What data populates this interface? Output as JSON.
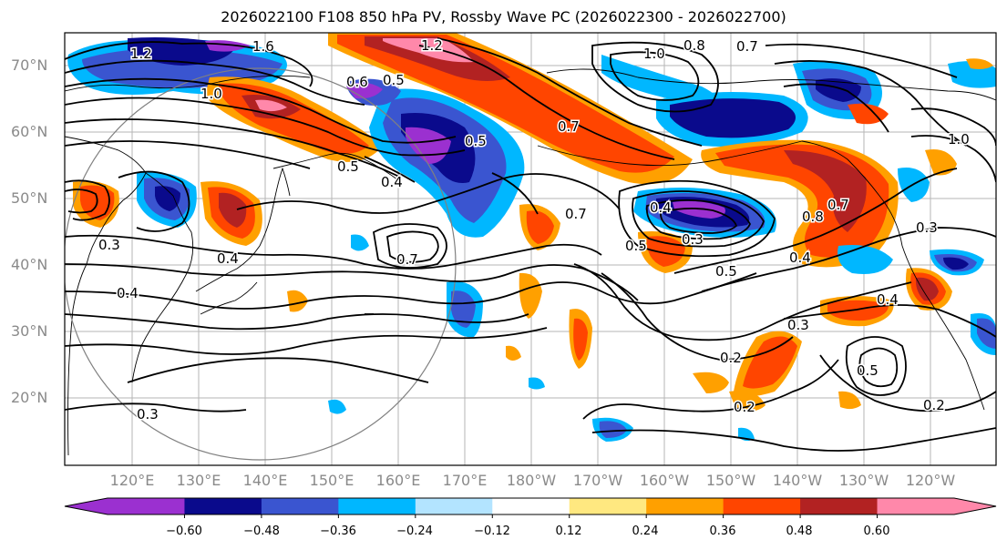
{
  "title": "2026022100 F108 850 hPa PV, Rossby Wave PC (2026022300 - 2026022700)",
  "map": {
    "latitude_labels": [
      "70°N",
      "60°N",
      "50°N",
      "40°N",
      "30°N",
      "20°N"
    ],
    "longitude_labels": [
      "120°E",
      "130°E",
      "140°E",
      "150°E",
      "160°E",
      "170°E",
      "180°W",
      "170°W",
      "160°W",
      "150°W",
      "140°W",
      "130°W",
      "120°W"
    ],
    "contour_labels": [
      "1.2",
      "1.6",
      "1.0",
      "0.8",
      "0.7",
      "1.2",
      "1.0",
      "0.5",
      "0.6",
      "0.5",
      "1.0",
      "0.7",
      "0.5",
      "0.4",
      "0.3",
      "0.4",
      "0.7",
      "0.7",
      "0.4",
      "0.3",
      "0.5",
      "0.5",
      "0.4",
      "0.8",
      "0.7",
      "0.3",
      "0.3",
      "0.4",
      "0.2",
      "0.2",
      "0.2",
      "0.3",
      "0.5",
      "0.4"
    ]
  },
  "colorbar": {
    "tick_labels": [
      "−0.60",
      "−0.48",
      "−0.36",
      "−0.24",
      "−0.12",
      "0.12",
      "0.24",
      "0.36",
      "0.48",
      "0.60"
    ],
    "colors": [
      "#9b30d0",
      "#0a0a8c",
      "#3a55d0",
      "#00b7ff",
      "#b3e4ff",
      "#ffffff",
      "#ffe880",
      "#ffa000",
      "#ff4500",
      "#b22222",
      "#ff88aa"
    ]
  }
}
